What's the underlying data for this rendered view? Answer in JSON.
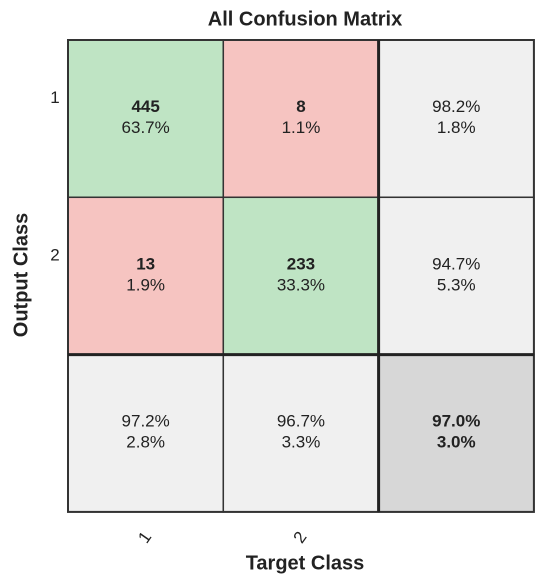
{
  "chart_data": {
    "type": "confusion_matrix",
    "title": "All Confusion Matrix",
    "xlabel": "Target Class",
    "ylabel": "Output Class",
    "classes": [
      "1",
      "2"
    ],
    "counts": [
      [
        445,
        8
      ],
      [
        13,
        233
      ]
    ],
    "percent": {
      "values": [
        [
          63.7,
          1.1
        ],
        [
          1.9,
          33.3
        ]
      ],
      "value_labels": [
        [
          "63.7%",
          "1.1%"
        ],
        [
          "1.9%",
          "33.3%"
        ]
      ]
    },
    "row_correct": {
      "values": [
        98.2,
        94.7
      ],
      "value_labels": [
        "98.2%",
        "94.7%"
      ]
    },
    "row_error": {
      "values": [
        1.8,
        5.3
      ],
      "value_labels": [
        "1.8%",
        "5.3%"
      ]
    },
    "col_correct": {
      "values": [
        97.2,
        96.7
      ],
      "value_labels": [
        "97.2%",
        "96.7%"
      ]
    },
    "col_error": {
      "values": [
        2.8,
        3.3
      ],
      "value_labels": [
        "2.8%",
        "3.3%"
      ]
    },
    "overall_correct": {
      "values": [
        97.0
      ],
      "value_labels": [
        "97.0%"
      ]
    },
    "overall_error": {
      "values": [
        3.0
      ],
      "value_labels": [
        "3.0%"
      ]
    },
    "colors": {
      "correct": "#bfe4c4",
      "wrong": "#f6c4c1",
      "summary": "#f0f0f0",
      "overall": "#d7d7d7",
      "good_text": "#3db559",
      "bad_text": "#d8433a"
    }
  }
}
